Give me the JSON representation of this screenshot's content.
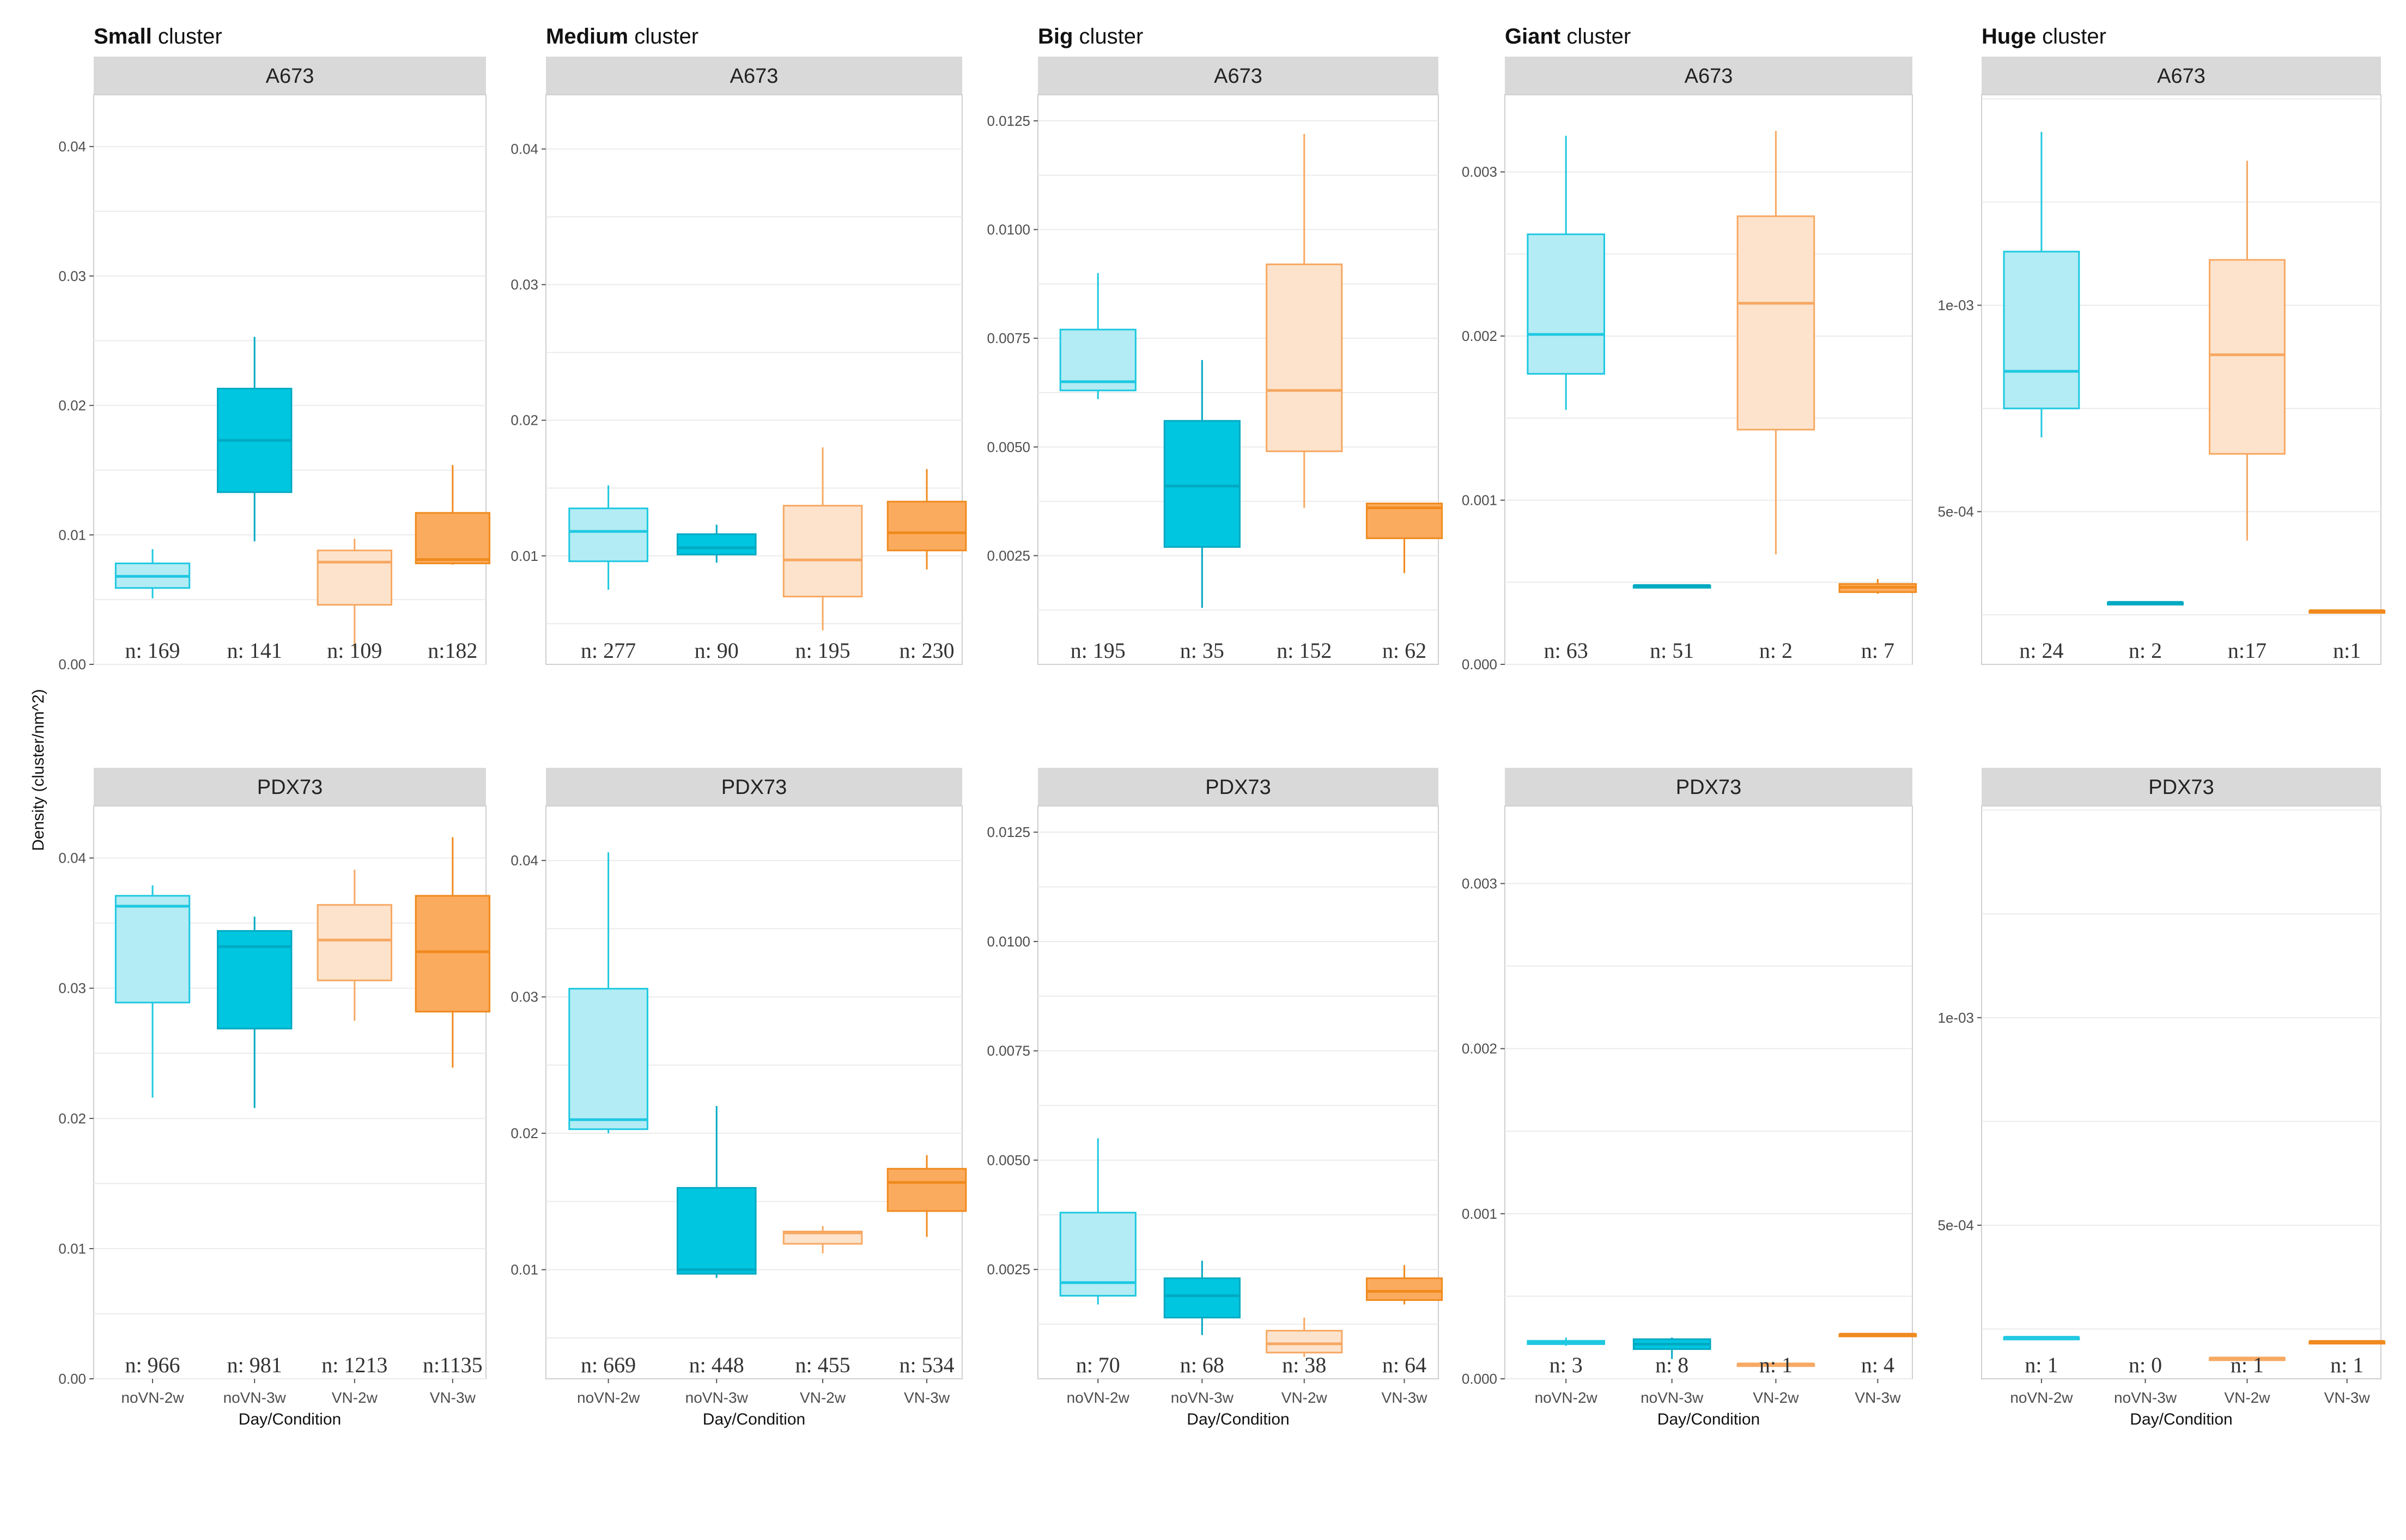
{
  "colors": {
    "noVN-2w": {
      "fill": "#b3ecf4",
      "stroke": "#1ec8e1"
    },
    "noVN-3w": {
      "fill": "#00c6e0",
      "stroke": "#00a9c2"
    },
    "VN-2w": {
      "fill": "#fde3cc",
      "stroke": "#f7a862"
    },
    "VN-3w": {
      "fill": "#fbab5e",
      "stroke": "#f08a1d"
    },
    "strip": "#d9d9d9",
    "grid": "#ebebeb"
  },
  "chart_data": {
    "type": "boxplot",
    "ylabel": "Density (cluster/nm^2)",
    "xlabel": "Day/Condition",
    "categories": [
      "noVN-2w",
      "noVN-3w",
      "VN-2w",
      "VN-3w"
    ],
    "columns": [
      {
        "title_bold": "Small",
        "title_rest": " cluster",
        "ylim": [
          0,
          0.044
        ],
        "ticks": [
          0,
          0.01,
          0.02,
          0.03,
          0.04
        ],
        "tick_labels": [
          "0.00",
          "0.01",
          "0.02",
          "0.03",
          "0.04"
        ],
        "panels": [
          {
            "strip": "A673",
            "n_labels": [
              "n: 169",
              "n: 141",
              "n: 109",
              "n:182"
            ],
            "boxes": [
              [
                0.0051,
                0.0059,
                0.0068,
                0.0078,
                0.0089
              ],
              [
                0.0095,
                0.0133,
                0.0173,
                0.0213,
                0.0253
              ],
              [
                0.0012,
                0.0046,
                0.0079,
                0.0088,
                0.0097
              ],
              [
                0.0077,
                0.0078,
                0.0081,
                0.0117,
                0.0154
              ]
            ]
          },
          {
            "strip": "PDX73",
            "n_labels": [
              "n: 966",
              "n: 981",
              "n: 1213",
              "n:1135"
            ],
            "boxes": [
              [
                0.0216,
                0.0289,
                0.0363,
                0.0371,
                0.0379
              ],
              [
                0.0208,
                0.0269,
                0.0332,
                0.0344,
                0.0355
              ],
              [
                0.0275,
                0.0306,
                0.0337,
                0.0364,
                0.0391
              ],
              [
                0.0239,
                0.0282,
                0.0328,
                0.0371,
                0.0416
              ]
            ]
          }
        ]
      },
      {
        "title_bold": "Medium",
        "title_rest": " cluster",
        "ylim": [
          0.002,
          0.044
        ],
        "ticks": [
          0.01,
          0.02,
          0.03,
          0.04
        ],
        "tick_labels": [
          "0.01",
          "0.02",
          "0.03",
          "0.04"
        ],
        "panels": [
          {
            "strip": "A673",
            "n_labels": [
              "n: 277",
              "n: 90",
              "n: 195",
              "n: 230"
            ],
            "boxes": [
              [
                0.0075,
                0.0096,
                0.0118,
                0.0135,
                0.0152
              ],
              [
                0.0095,
                0.0101,
                0.0106,
                0.0116,
                0.0123
              ],
              [
                0.0045,
                0.007,
                0.0097,
                0.0137,
                0.018
              ],
              [
                0.009,
                0.0104,
                0.0117,
                0.014,
                0.0164
              ]
            ]
          },
          {
            "strip": "PDX73",
            "n_labels": [
              "n: 669",
              "n: 448",
              "n: 455",
              "n: 534"
            ],
            "boxes": [
              [
                0.02,
                0.0203,
                0.021,
                0.0306,
                0.0406
              ],
              [
                0.0094,
                0.0097,
                0.01,
                0.016,
                0.022
              ],
              [
                0.0112,
                0.0119,
                0.0127,
                0.0128,
                0.0132
              ],
              [
                0.0124,
                0.0143,
                0.0164,
                0.0174,
                0.0184
              ]
            ]
          }
        ]
      },
      {
        "title_bold": "Big",
        "title_rest": " cluster",
        "ylim": [
          0.0,
          0.0131
        ],
        "ticks": [
          0.0025,
          0.005,
          0.0075,
          0.01,
          0.0125
        ],
        "tick_labels": [
          "0.0025",
          "0.0050",
          "0.0075",
          "0.0100",
          "0.0125"
        ],
        "panels": [
          {
            "strip": "A673",
            "n_labels": [
              "n: 195",
              "n: 35",
              "n: 152",
              "n: 62"
            ],
            "boxes": [
              [
                0.0061,
                0.0063,
                0.0065,
                0.0077,
                0.009
              ],
              [
                0.0013,
                0.0027,
                0.0041,
                0.0056,
                0.007
              ],
              [
                0.0036,
                0.0049,
                0.0063,
                0.0092,
                0.0122
              ],
              [
                0.0021,
                0.0029,
                0.0036,
                0.0037,
                0.0037
              ]
            ]
          },
          {
            "strip": "PDX73",
            "n_labels": [
              "n: 70",
              "n: 68",
              "n: 38",
              "n: 64"
            ],
            "boxes": [
              [
                0.0017,
                0.0019,
                0.0022,
                0.0038,
                0.0055
              ],
              [
                0.001,
                0.0014,
                0.0019,
                0.0023,
                0.0027
              ],
              [
                0.0005,
                0.0006,
                0.0008,
                0.0011,
                0.0014
              ],
              [
                0.0017,
                0.0018,
                0.002,
                0.0023,
                0.0026
              ]
            ]
          }
        ]
      },
      {
        "title_bold": "Giant",
        "title_rest": " cluster",
        "ylim": [
          0.0,
          0.00347
        ],
        "ticks": [
          0.0,
          0.001,
          0.002,
          0.003
        ],
        "tick_labels": [
          "0.000",
          "0.001",
          "0.002",
          "0.003"
        ],
        "panels": [
          {
            "strip": "A673",
            "n_labels": [
              "n: 63",
              "n: 51",
              "n: 2",
              "n: 7"
            ],
            "boxes": [
              [
                0.00155,
                0.00177,
                0.00201,
                0.00262,
                0.00322
              ],
              [
                0.00048,
                0.00048,
                0.00048,
                0.00048,
                0.00048
              ],
              [
                0.00067,
                0.00143,
                0.0022,
                0.00273,
                0.00325
              ],
              [
                0.00043,
                0.00044,
                0.00047,
                0.00049,
                0.00052
              ]
            ]
          },
          {
            "strip": "PDX73",
            "n_labels": [
              "n: 3",
              "n: 8",
              "n: 1",
              "n: 4"
            ],
            "boxes": [
              [
                0.0002,
                0.00021,
                0.00022,
                0.00023,
                0.00025
              ],
              [
                0.00012,
                0.00018,
                0.00021,
                0.00024,
                0.00025
              ],
              [
                9e-05,
                9e-05,
                9e-05,
                9e-05,
                9e-05
              ],
              [
                0.00027,
                0.00027,
                0.00027,
                0.00027,
                0.00027
              ]
            ]
          }
        ]
      },
      {
        "title_bold": "Huge",
        "title_rest": " cluster",
        "ylim": [
          0.00013,
          0.00151
        ],
        "ticks": [
          0.0005,
          0.001
        ],
        "tick_labels": [
          "5e-04",
          "1e-03"
        ],
        "panels": [
          {
            "strip": "A673",
            "n_labels": [
              "n: 24",
              "n: 2",
              "n:17",
              "n:1"
            ],
            "boxes": [
              [
                0.00068,
                0.00075,
                0.00084,
                0.00113,
                0.00142
              ],
              [
                0.00028,
                0.00028,
                0.00028,
                0.00028,
                0.00028
              ],
              [
                0.00043,
                0.00064,
                0.00088,
                0.00111,
                0.00135
              ],
              [
                0.00026,
                0.00026,
                0.00026,
                0.00026,
                0.00026
              ]
            ]
          },
          {
            "strip": "PDX73",
            "n_labels": [
              "n: 1",
              "n: 0",
              "n: 1",
              "n: 1"
            ],
            "boxes": [
              [
                0.00023,
                0.00023,
                0.00023,
                0.00023,
                0.00023
              ],
              null,
              [
                0.00018,
                0.00018,
                0.00018,
                0.00018,
                0.00018
              ],
              [
                0.00022,
                0.00022,
                0.00022,
                0.00022,
                0.00022
              ]
            ]
          }
        ]
      }
    ]
  }
}
